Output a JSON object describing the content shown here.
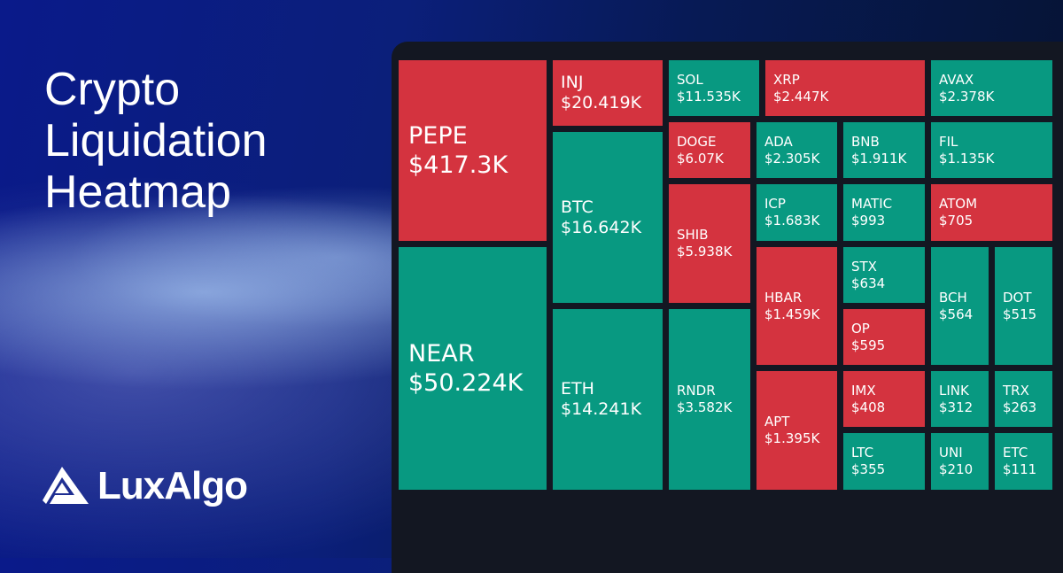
{
  "title": "Crypto Liquidation Heatmap",
  "brand": "LuxAlgo",
  "colors": {
    "short": "#d4333f",
    "long": "#089981",
    "panel": "#131722"
  },
  "tiles": [
    {
      "symbol": "PEPE",
      "value": "$417.3K",
      "color": "red"
    },
    {
      "symbol": "NEAR",
      "value": "$50.224K",
      "color": "green"
    },
    {
      "symbol": "INJ",
      "value": "$20.419K",
      "color": "red"
    },
    {
      "symbol": "BTC",
      "value": "$16.642K",
      "color": "green"
    },
    {
      "symbol": "ETH",
      "value": "$14.241K",
      "color": "green"
    },
    {
      "symbol": "SOL",
      "value": "$11.535K",
      "color": "green"
    },
    {
      "symbol": "XRP",
      "value": "$2.447K",
      "color": "red"
    },
    {
      "symbol": "AVAX",
      "value": "$2.378K",
      "color": "green"
    },
    {
      "symbol": "DOGE",
      "value": "$6.07K",
      "color": "red"
    },
    {
      "symbol": "SHIB",
      "value": "$5.938K",
      "color": "red"
    },
    {
      "symbol": "RNDR",
      "value": "$3.582K",
      "color": "green"
    },
    {
      "symbol": "ADA",
      "value": "$2.305K",
      "color": "green"
    },
    {
      "symbol": "ICP",
      "value": "$1.683K",
      "color": "green"
    },
    {
      "symbol": "HBAR",
      "value": "$1.459K",
      "color": "red"
    },
    {
      "symbol": "APT",
      "value": "$1.395K",
      "color": "red"
    },
    {
      "symbol": "BNB",
      "value": "$1.911K",
      "color": "green"
    },
    {
      "symbol": "MATIC",
      "value": "$993",
      "color": "green"
    },
    {
      "symbol": "STX",
      "value": "$634",
      "color": "green"
    },
    {
      "symbol": "OP",
      "value": "$595",
      "color": "red"
    },
    {
      "symbol": "IMX",
      "value": "$408",
      "color": "red"
    },
    {
      "symbol": "LTC",
      "value": "$355",
      "color": "green"
    },
    {
      "symbol": "FIL",
      "value": "$1.135K",
      "color": "green"
    },
    {
      "symbol": "ATOM",
      "value": "$705",
      "color": "red"
    },
    {
      "symbol": "BCH",
      "value": "$564",
      "color": "green"
    },
    {
      "symbol": "DOT",
      "value": "$515",
      "color": "green"
    },
    {
      "symbol": "LINK",
      "value": "$312",
      "color": "green"
    },
    {
      "symbol": "TRX",
      "value": "$263",
      "color": "green"
    },
    {
      "symbol": "UNI",
      "value": "$210",
      "color": "green"
    },
    {
      "symbol": "ETC",
      "value": "$111",
      "color": "green"
    }
  ]
}
